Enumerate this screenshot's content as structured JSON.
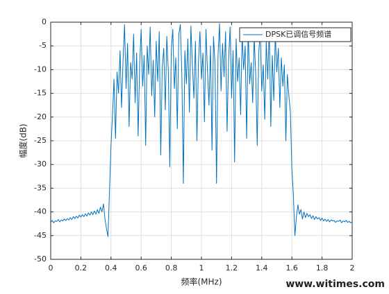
{
  "chart_data": {
    "type": "line",
    "xlabel": "频率(MHz)",
    "ylabel": "幅度(dB)",
    "annotation": "www.witimes.com",
    "legend": "northeast",
    "grid": true,
    "xlim": [
      0,
      2
    ],
    "xticks": [
      0,
      0.2,
      0.4,
      0.6,
      0.8,
      1,
      1.2,
      1.4,
      1.6,
      1.8,
      2
    ],
    "ylim": [
      -50,
      0
    ],
    "yticks": [
      -50,
      -45,
      -40,
      -35,
      -30,
      -25,
      -20,
      -15,
      -10,
      -5,
      0
    ],
    "x": [
      0,
      0.01,
      0.02,
      0.03,
      0.04,
      0.05,
      0.06,
      0.07,
      0.08,
      0.09,
      0.1,
      0.11,
      0.12,
      0.13,
      0.14,
      0.15,
      0.16,
      0.17,
      0.18,
      0.19,
      0.2,
      0.21,
      0.22,
      0.23,
      0.24,
      0.25,
      0.26,
      0.27,
      0.28,
      0.29,
      0.3,
      0.31,
      0.32,
      0.33,
      0.34,
      0.35,
      0.36,
      0.37,
      0.38,
      0.39,
      0.4,
      0.41,
      0.42,
      0.43,
      0.44,
      0.45,
      0.46,
      0.47,
      0.48,
      0.49,
      0.5,
      0.51,
      0.52,
      0.53,
      0.54,
      0.55,
      0.56,
      0.57,
      0.58,
      0.59,
      0.6,
      0.61,
      0.62,
      0.63,
      0.64,
      0.65,
      0.66,
      0.67,
      0.68,
      0.69,
      0.7,
      0.71,
      0.72,
      0.73,
      0.74,
      0.75,
      0.76,
      0.77,
      0.78,
      0.79,
      0.8,
      0.81,
      0.82,
      0.83,
      0.84,
      0.85,
      0.86,
      0.87,
      0.88,
      0.89,
      0.9,
      0.91,
      0.92,
      0.93,
      0.94,
      0.95,
      0.96,
      0.97,
      0.98,
      0.99,
      1,
      1.01,
      1.02,
      1.03,
      1.04,
      1.05,
      1.06,
      1.07,
      1.08,
      1.09,
      1.1,
      1.11,
      1.12,
      1.13,
      1.14,
      1.15,
      1.16,
      1.17,
      1.18,
      1.19,
      1.2,
      1.21,
      1.22,
      1.23,
      1.24,
      1.25,
      1.26,
      1.27,
      1.28,
      1.29,
      1.3,
      1.31,
      1.32,
      1.33,
      1.34,
      1.35,
      1.36,
      1.37,
      1.38,
      1.39,
      1.4,
      1.41,
      1.42,
      1.43,
      1.44,
      1.45,
      1.46,
      1.47,
      1.48,
      1.49,
      1.5,
      1.51,
      1.52,
      1.53,
      1.54,
      1.55,
      1.56,
      1.57,
      1.58,
      1.59,
      1.6,
      1.61,
      1.62,
      1.63,
      1.64,
      1.65,
      1.66,
      1.67,
      1.68,
      1.69,
      1.7,
      1.71,
      1.72,
      1.73,
      1.74,
      1.75,
      1.76,
      1.77,
      1.78,
      1.79,
      1.8,
      1.81,
      1.82,
      1.83,
      1.84,
      1.85,
      1.86,
      1.87,
      1.88,
      1.89,
      1.9,
      1.91,
      1.92,
      1.93,
      1.94,
      1.95,
      1.96,
      1.97,
      1.98,
      1.99,
      2
    ],
    "series": [
      {
        "name": "DPSK已调信号频谱",
        "color": "#0072bd",
        "values": [
          -42.2,
          -41.8,
          -42.3,
          -41.9,
          -42.0,
          -41.6,
          -42.1,
          -41.7,
          -41.9,
          -41.5,
          -41.8,
          -41.4,
          -41.7,
          -41.2,
          -41.6,
          -41.0,
          -41.4,
          -40.9,
          -41.3,
          -40.7,
          -41.1,
          -40.6,
          -41.0,
          -40.4,
          -40.9,
          -40.2,
          -40.7,
          -40.0,
          -40.6,
          -39.8,
          -40.5,
          -39.5,
          -40.3,
          -39.0,
          -40.0,
          -38.3,
          -41.5,
          -43.5,
          -45.2,
          -35.5,
          -26.0,
          -19.5,
          -12.0,
          -24.5,
          -10.5,
          -15.0,
          -6.0,
          -18.0,
          -8.0,
          -0.5,
          -14.0,
          -4.5,
          -22.0,
          -8.5,
          -12.0,
          -2.5,
          -17.0,
          -6.5,
          -24.0,
          -9.0,
          -1.5,
          -13.5,
          -7.0,
          -26.0,
          -5.0,
          -11.0,
          -1.0,
          -15.5,
          -8.0,
          -20.0,
          -4.0,
          -12.5,
          -2.0,
          -28.0,
          -9.5,
          -5.5,
          -18.5,
          -3.0,
          -10.0,
          -30.5,
          -6.0,
          -1.5,
          -14.0,
          -7.5,
          -22.5,
          -2.5,
          -0.5,
          -11.0,
          -34.0,
          -6.0,
          -13.0,
          -3.5,
          -19.0,
          -0.8,
          -9.0,
          -16.0,
          -4.0,
          -25.0,
          -8.5,
          -2.0,
          -12.0,
          -6.5,
          -21.0,
          -1.5,
          -10.5,
          -17.5,
          -5.0,
          -27.0,
          -3.0,
          -9.0,
          -34.0,
          -7.0,
          -0.3,
          -14.5,
          -4.5,
          -11.5,
          -2.0,
          -23.0,
          -8.0,
          -1.0,
          -16.0,
          -6.0,
          -29.5,
          -3.5,
          -12.5,
          -7.5,
          -19.5,
          -2.5,
          -10.0,
          -5.0,
          -24.5,
          -1.5,
          -13.0,
          -8.5,
          -17.0,
          -3.0,
          -11.0,
          -26.0,
          -6.5,
          -2.0,
          -14.5,
          -9.0,
          -20.5,
          -4.0,
          -12.0,
          -1.5,
          -22.0,
          -7.0,
          -16.5,
          -2.5,
          -10.5,
          -5.5,
          -18.0,
          -7.5,
          -13.5,
          -9.0,
          -25.0,
          -11.0,
          -15.5,
          -19.0,
          -31.0,
          -36.5,
          -45.0,
          -41.0,
          -38.5,
          -40.5,
          -39.5,
          -41.5,
          -40.0,
          -41.2,
          -40.3,
          -41.0,
          -40.6,
          -41.4,
          -40.8,
          -41.6,
          -41.0,
          -41.5,
          -41.2,
          -41.8,
          -41.3,
          -41.9,
          -41.5,
          -42.0,
          -41.6,
          -42.1,
          -41.7,
          -41.9,
          -41.8,
          -42.2,
          -41.9,
          -42.0,
          -41.7,
          -42.3,
          -41.9,
          -42.1,
          -41.8,
          -42.2,
          -42.0,
          -42.3,
          -42.1
        ]
      }
    ]
  }
}
